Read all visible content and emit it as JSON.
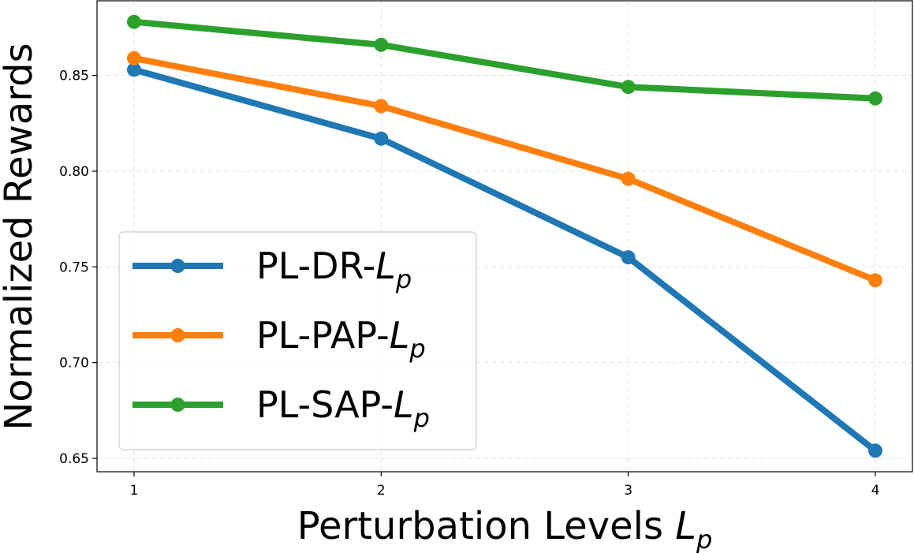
{
  "chart_data": {
    "type": "line",
    "title": "",
    "xlabel_text": "Perturbation Levels ",
    "xlabel_sym": "L",
    "xlabel_sub": "p",
    "ylabel": "Normalized Rewards",
    "x": [
      1,
      2,
      3,
      4
    ],
    "x_tick_labels": [
      "1",
      "2",
      "3",
      "4"
    ],
    "y_ticks": [
      0.65,
      0.7,
      0.75,
      0.8,
      0.85
    ],
    "y_tick_labels": [
      "0.65",
      "0.70",
      "0.75",
      "0.80",
      "0.85"
    ],
    "xlim": [
      0.85,
      4.15
    ],
    "ylim": [
      0.643,
      0.889
    ],
    "grid": true,
    "legend_position": "lower-left",
    "series": [
      {
        "name": "PL-DR-",
        "sym": "L",
        "sub": "p",
        "color": "#1f77b4",
        "values": [
          0.853,
          0.817,
          0.755,
          0.654
        ]
      },
      {
        "name": "PL-PAP-",
        "sym": "L",
        "sub": "p",
        "color": "#ff7f0e",
        "values": [
          0.859,
          0.834,
          0.796,
          0.743
        ]
      },
      {
        "name": "PL-SAP-",
        "sym": "L",
        "sub": "p",
        "color": "#2ca02c",
        "values": [
          0.878,
          0.866,
          0.844,
          0.838
        ]
      }
    ]
  }
}
